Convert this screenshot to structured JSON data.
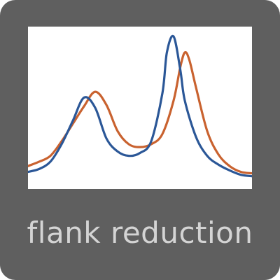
{
  "tile": {
    "label": "flank reduction",
    "background_color": "#5f5f5f",
    "label_color": "#d4d4d4",
    "icon": "spectrum-peaks-icon"
  },
  "chart_data": {
    "type": "line",
    "title": "",
    "xlabel": "",
    "ylabel": "",
    "xlim": [
      0,
      100
    ],
    "ylim": [
      0,
      1
    ],
    "grid": false,
    "legend": "none",
    "series": [
      {
        "color": "#2b5797",
        "x": [
          0,
          5,
          10,
          15,
          20,
          25,
          30,
          35,
          40,
          45,
          50,
          55,
          60,
          62,
          65,
          68,
          70,
          75,
          80,
          85,
          90,
          95,
          100
        ],
        "y": [
          0.06,
          0.08,
          0.13,
          0.25,
          0.41,
          0.57,
          0.5,
          0.29,
          0.2,
          0.17,
          0.19,
          0.27,
          0.6,
          0.88,
          0.99,
          0.76,
          0.55,
          0.3,
          0.17,
          0.11,
          0.07,
          0.04,
          0.03
        ]
      },
      {
        "color": "#c9622f",
        "x": [
          0,
          5,
          10,
          15,
          20,
          25,
          30,
          35,
          40,
          45,
          50,
          55,
          60,
          65,
          68,
          70,
          72,
          75,
          80,
          85,
          90,
          95,
          100
        ],
        "y": [
          0.1,
          0.13,
          0.17,
          0.27,
          0.39,
          0.51,
          0.61,
          0.52,
          0.34,
          0.25,
          0.23,
          0.25,
          0.32,
          0.55,
          0.78,
          0.88,
          0.83,
          0.64,
          0.34,
          0.18,
          0.1,
          0.06,
          0.05
        ]
      }
    ]
  }
}
